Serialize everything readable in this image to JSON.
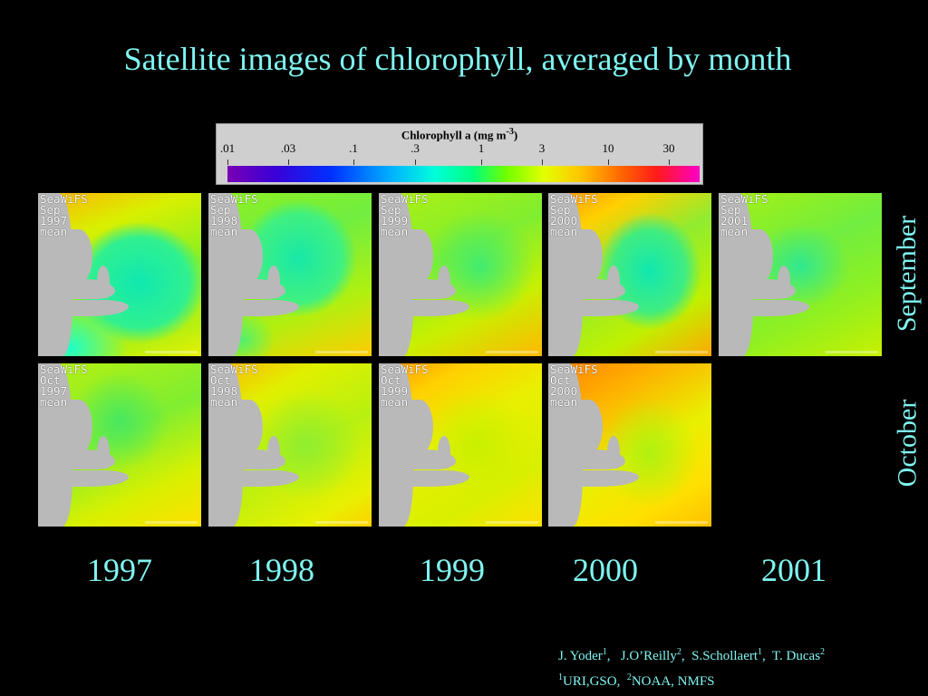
{
  "title": "Satellite images of chlorophyll, averaged by month",
  "colorbar": {
    "title": "Chlorophyll a (mg m",
    "title_sup": "-3",
    "title_end": ")",
    "ticks": [
      ".01",
      ".03",
      ".1",
      ".3",
      "1",
      "3",
      "10",
      "30"
    ]
  },
  "rows": [
    {
      "label": "September",
      "tiles": [
        {
          "text": "SeaWiFS\nSep\n1997\nmean",
          "scheme": "sep97"
        },
        {
          "text": "SeaWiFS\nSep\n1998\nmean",
          "scheme": "sep98"
        },
        {
          "text": "SeaWiFS\nSep\n1999\nmean",
          "scheme": "sep99"
        },
        {
          "text": "SeaWiFS\nSep\n2000\nmean",
          "scheme": "sep00"
        },
        {
          "text": "SeaWiFS\nSep\n2001\nmean",
          "scheme": "sep01"
        }
      ]
    },
    {
      "label": "October",
      "tiles": [
        {
          "text": "SeaWiFS\nOct\n1997\nmean",
          "scheme": "oct97"
        },
        {
          "text": "SeaWiFS\nOct\n1998\nmean",
          "scheme": "oct98"
        },
        {
          "text": "SeaWiFS\nOct\n1999\nmean",
          "scheme": "oct99"
        },
        {
          "text": "SeaWiFS\nOct\n2000\nmean",
          "scheme": "oct00"
        }
      ]
    }
  ],
  "years": [
    "1997",
    "1998",
    "1999",
    "2000",
    "2001"
  ],
  "credits": {
    "line1": [
      {
        "name": "J. Yoder",
        "sup": "1",
        "sep": ",   "
      },
      {
        "name": "J.O’Reilly",
        "sup": "2",
        "sep": ",  "
      },
      {
        "name": "S.Schollaert",
        "sup": "1",
        "sep": ",  "
      },
      {
        "name": "T. Ducas",
        "sup": "2",
        "sep": ""
      }
    ],
    "line2": [
      {
        "pre": "1",
        "text": "URI,GSO,  "
      },
      {
        "pre": "2",
        "text": "NOAA, NMFS"
      }
    ]
  }
}
